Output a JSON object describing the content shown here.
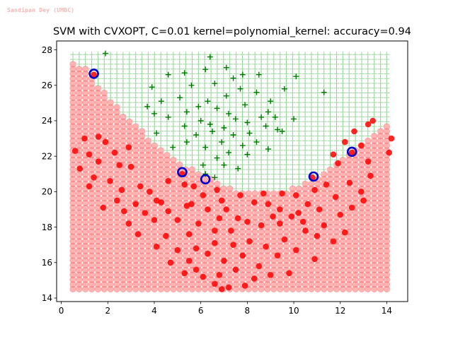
{
  "watermark": "Sandipan Dey (UMBC)",
  "chart_data": {
    "type": "scatter",
    "title": "SVM with CVXOPT, C=0.01 kernel=polynomial_kernel: accuracy=0.94",
    "xlabel": "",
    "ylabel": "",
    "xlim": [
      -0.2,
      14.9
    ],
    "ylim": [
      13.8,
      28.5
    ],
    "x_ticks": [
      0,
      2,
      4,
      6,
      8,
      10,
      12,
      14
    ],
    "y_ticks": [
      14,
      16,
      18,
      20,
      22,
      24,
      26,
      28
    ],
    "x_tick_labels": [
      "0",
      "2",
      "4",
      "6",
      "8",
      "10",
      "12",
      "14"
    ],
    "y_tick_labels": [
      "14",
      "16",
      "18",
      "20",
      "22",
      "24",
      "26",
      "28"
    ],
    "grid": false,
    "legend": "none",
    "colors": {
      "negative_region": "#ff8080",
      "negative_region_edge": "#ff3030",
      "positive_region": "#74c476",
      "positive_points": "#007a00",
      "negative_points": "#ff0000",
      "support_vector_edge": "#0000cc"
    },
    "decision_region": {
      "grid_x_range": [
        0.5,
        14.2
      ],
      "grid_y_range": [
        14.5,
        27.8
      ],
      "grid_step": 0.27,
      "boundary": [
        {
          "x": 0.5,
          "y": 27.4
        },
        {
          "x": 1.0,
          "y": 27.0
        },
        {
          "x": 1.5,
          "y": 26.2
        },
        {
          "x": 2.0,
          "y": 25.4
        },
        {
          "x": 2.5,
          "y": 24.7
        },
        {
          "x": 3.0,
          "y": 24.0
        },
        {
          "x": 3.5,
          "y": 23.4
        },
        {
          "x": 4.0,
          "y": 22.8
        },
        {
          "x": 4.5,
          "y": 22.3
        },
        {
          "x": 5.0,
          "y": 21.8
        },
        {
          "x": 5.5,
          "y": 21.4
        },
        {
          "x": 6.0,
          "y": 21.0
        },
        {
          "x": 6.5,
          "y": 20.7
        },
        {
          "x": 7.0,
          "y": 20.4
        },
        {
          "x": 7.5,
          "y": 20.1
        },
        {
          "x": 8.0,
          "y": 20.0
        },
        {
          "x": 8.5,
          "y": 20.0
        },
        {
          "x": 9.0,
          "y": 20.0
        },
        {
          "x": 9.5,
          "y": 20.0
        },
        {
          "x": 10.0,
          "y": 20.2
        },
        {
          "x": 10.5,
          "y": 20.5
        },
        {
          "x": 11.0,
          "y": 20.8
        },
        {
          "x": 11.5,
          "y": 21.3
        },
        {
          "x": 12.0,
          "y": 21.8
        },
        {
          "x": 12.5,
          "y": 22.3
        },
        {
          "x": 13.0,
          "y": 22.9
        },
        {
          "x": 13.5,
          "y": 23.4
        },
        {
          "x": 14.2,
          "y": 24.1
        }
      ]
    },
    "series": [
      {
        "name": "",
        "marker": "plus",
        "class": "positive",
        "points": [
          [
            1.9,
            27.8
          ],
          [
            6.4,
            27.6
          ],
          [
            7.1,
            27.0
          ],
          [
            6.2,
            26.9
          ],
          [
            5.3,
            26.7
          ],
          [
            4.6,
            26.6
          ],
          [
            8.5,
            26.6
          ],
          [
            7.8,
            26.6
          ],
          [
            10.1,
            26.5
          ],
          [
            7.4,
            26.4
          ],
          [
            6.6,
            26.1
          ],
          [
            5.6,
            26.0
          ],
          [
            9.6,
            25.8
          ],
          [
            7.7,
            25.8
          ],
          [
            3.9,
            25.9
          ],
          [
            8.4,
            25.6
          ],
          [
            11.3,
            25.6
          ],
          [
            7.1,
            25.4
          ],
          [
            6.3,
            25.1
          ],
          [
            5.1,
            25.3
          ],
          [
            9.0,
            25.1
          ],
          [
            4.3,
            25.1
          ],
          [
            7.9,
            24.9
          ],
          [
            5.9,
            24.8
          ],
          [
            8.9,
            24.5
          ],
          [
            3.7,
            24.8
          ],
          [
            6.7,
            24.7
          ],
          [
            9.2,
            24.2
          ],
          [
            7.2,
            24.4
          ],
          [
            8.6,
            24.2
          ],
          [
            5.4,
            24.5
          ],
          [
            4.0,
            24.4
          ],
          [
            6.0,
            24.0
          ],
          [
            10.0,
            24.1
          ],
          [
            7.5,
            24.1
          ],
          [
            8.0,
            23.9
          ],
          [
            6.4,
            23.8
          ],
          [
            4.6,
            24.2
          ],
          [
            8.8,
            23.7
          ],
          [
            7.0,
            23.6
          ],
          [
            5.3,
            23.7
          ],
          [
            9.3,
            23.5
          ],
          [
            8.1,
            23.3
          ],
          [
            6.5,
            23.4
          ],
          [
            5.8,
            23.2
          ],
          [
            7.4,
            23.2
          ],
          [
            4.1,
            23.3
          ],
          [
            9.5,
            23.4
          ],
          [
            6.9,
            22.8
          ],
          [
            8.4,
            22.8
          ],
          [
            7.8,
            22.6
          ],
          [
            5.4,
            22.8
          ],
          [
            6.2,
            22.5
          ],
          [
            8.9,
            22.4
          ],
          [
            7.2,
            22.2
          ],
          [
            4.8,
            22.5
          ],
          [
            6.7,
            21.9
          ],
          [
            8.0,
            22.1
          ],
          [
            6.1,
            21.5
          ],
          [
            7.0,
            21.5
          ],
          [
            7.6,
            21.3
          ],
          [
            6.2,
            21.0
          ],
          [
            6.6,
            20.8
          ]
        ]
      },
      {
        "name": "",
        "marker": "circle",
        "class": "negative",
        "points": [
          [
            1.4,
            26.6
          ],
          [
            1.0,
            23.0
          ],
          [
            1.6,
            23.1
          ],
          [
            1.9,
            22.8
          ],
          [
            0.6,
            22.3
          ],
          [
            1.2,
            22.1
          ],
          [
            2.3,
            22.2
          ],
          [
            2.9,
            22.5
          ],
          [
            0.8,
            21.3
          ],
          [
            1.6,
            21.7
          ],
          [
            2.5,
            21.5
          ],
          [
            3.0,
            21.4
          ],
          [
            1.4,
            20.8
          ],
          [
            2.1,
            20.6
          ],
          [
            2.6,
            20.1
          ],
          [
            3.4,
            20.3
          ],
          [
            1.2,
            20.3
          ],
          [
            3.8,
            20.0
          ],
          [
            4.6,
            20.6
          ],
          [
            5.2,
            21.0
          ],
          [
            5.3,
            20.4
          ],
          [
            4.1,
            19.5
          ],
          [
            2.4,
            19.5
          ],
          [
            3.2,
            19.3
          ],
          [
            1.8,
            19.1
          ],
          [
            2.7,
            18.9
          ],
          [
            3.6,
            18.8
          ],
          [
            4.6,
            18.9
          ],
          [
            5.4,
            19.2
          ],
          [
            6.1,
            19.8
          ],
          [
            6.9,
            19.5
          ],
          [
            6.3,
            19.0
          ],
          [
            4.0,
            18.4
          ],
          [
            2.9,
            18.2
          ],
          [
            5.0,
            18.4
          ],
          [
            5.9,
            18.2
          ],
          [
            6.8,
            18.5
          ],
          [
            7.6,
            18.5
          ],
          [
            8.3,
            19.4
          ],
          [
            8.9,
            19.3
          ],
          [
            9.5,
            19.9
          ],
          [
            10.1,
            19.8
          ],
          [
            10.9,
            20.1
          ],
          [
            11.4,
            20.4
          ],
          [
            11.9,
            21.6
          ],
          [
            11.7,
            22.1
          ],
          [
            12.2,
            22.8
          ],
          [
            12.6,
            23.4
          ],
          [
            13.2,
            23.8
          ],
          [
            13.4,
            24.0
          ],
          [
            12.9,
            22.6
          ],
          [
            13.2,
            21.7
          ],
          [
            14.2,
            23.0
          ],
          [
            14.1,
            22.2
          ],
          [
            12.5,
            22.2
          ],
          [
            10.8,
            20.8
          ],
          [
            3.3,
            17.6
          ],
          [
            4.5,
            17.5
          ],
          [
            5.5,
            17.6
          ],
          [
            6.6,
            17.8
          ],
          [
            7.3,
            17.8
          ],
          [
            8.0,
            18.3
          ],
          [
            8.6,
            18.1
          ],
          [
            9.4,
            18.2
          ],
          [
            10.2,
            18.8
          ],
          [
            11.1,
            19.0
          ],
          [
            11.8,
            19.7
          ],
          [
            12.4,
            20.5
          ],
          [
            12.9,
            20.0
          ],
          [
            13.3,
            20.9
          ],
          [
            4.1,
            16.9
          ],
          [
            5.0,
            16.7
          ],
          [
            5.8,
            16.8
          ],
          [
            6.6,
            17.1
          ],
          [
            7.4,
            17.0
          ],
          [
            8.1,
            17.2
          ],
          [
            8.8,
            16.9
          ],
          [
            9.6,
            17.3
          ],
          [
            10.5,
            17.8
          ],
          [
            11.3,
            18.1
          ],
          [
            12.0,
            18.7
          ],
          [
            12.5,
            19.1
          ],
          [
            13.0,
            19.5
          ],
          [
            4.7,
            16.0
          ],
          [
            5.5,
            16.1
          ],
          [
            6.3,
            16.5
          ],
          [
            7.0,
            16.1
          ],
          [
            7.8,
            16.4
          ],
          [
            8.5,
            15.8
          ],
          [
            9.3,
            16.4
          ],
          [
            10.1,
            16.7
          ],
          [
            10.9,
            16.2
          ],
          [
            11.7,
            17.2
          ],
          [
            12.2,
            17.7
          ],
          [
            5.3,
            15.4
          ],
          [
            6.1,
            15.2
          ],
          [
            6.8,
            15.3
          ],
          [
            7.5,
            15.6
          ],
          [
            8.3,
            15.1
          ],
          [
            9.0,
            15.3
          ],
          [
            9.8,
            15.4
          ],
          [
            6.6,
            14.8
          ],
          [
            7.2,
            14.6
          ],
          [
            7.9,
            14.7
          ],
          [
            6.9,
            14.5
          ],
          [
            5.8,
            15.6
          ],
          [
            9.4,
            19.0
          ],
          [
            9.9,
            18.6
          ],
          [
            10.6,
            19.3
          ],
          [
            4.3,
            19.4
          ],
          [
            5.7,
            20.3
          ],
          [
            6.7,
            20.1
          ],
          [
            7.7,
            19.8
          ],
          [
            8.7,
            19.9
          ],
          [
            9.1,
            18.6
          ],
          [
            10.4,
            18.3
          ],
          [
            11.0,
            17.5
          ],
          [
            7.1,
            19.0
          ],
          [
            5.6,
            19.3
          ]
        ]
      }
    ],
    "support_vectors": [
      [
        1.4,
        26.65
      ],
      [
        5.2,
        21.1
      ],
      [
        6.2,
        20.7
      ],
      [
        10.85,
        20.85
      ],
      [
        12.5,
        22.25
      ]
    ]
  }
}
